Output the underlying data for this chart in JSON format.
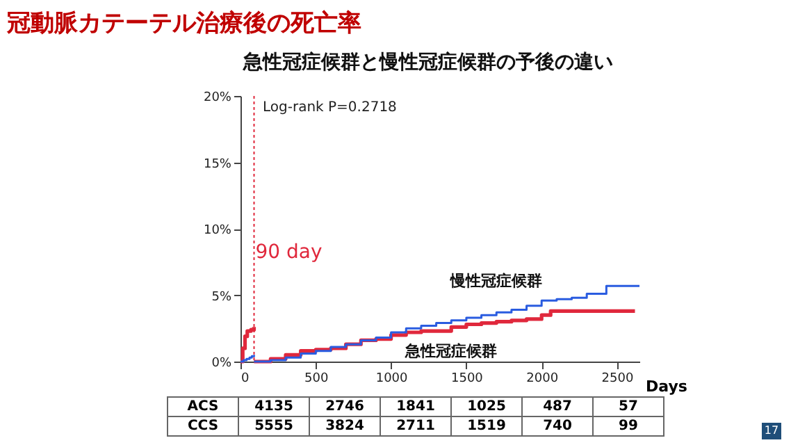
{
  "chart_data": {
    "type": "step",
    "title": "冠動脈カテーテル治療後の死亡率",
    "subtitle": "急性冠症候群と慢性冠症候群の予後の違い",
    "xlabel": "Days",
    "series": [
      {
        "name": "急性冠症候群",
        "color": "#e0283c",
        "x": [
          0,
          15,
          30,
          45,
          70,
          90,
          null,
          90,
          200,
          300,
          400,
          500,
          600,
          700,
          800,
          900,
          1000,
          1100,
          1200,
          1300,
          1400,
          1500,
          1600,
          1700,
          1800,
          1900,
          2000,
          2060,
          2620
        ],
        "values": [
          0,
          1.0,
          1.9,
          2.3,
          2.4,
          2.6,
          null,
          0,
          0.2,
          0.5,
          0.8,
          0.9,
          1.0,
          1.3,
          1.6,
          1.7,
          2.0,
          2.2,
          2.3,
          2.3,
          2.6,
          2.8,
          2.9,
          3.0,
          3.1,
          3.2,
          3.5,
          3.8,
          3.8
        ]
      },
      {
        "name": "慢性冠症候群",
        "color": "#2a5ce0",
        "x": [
          0,
          20,
          40,
          60,
          75,
          90,
          null,
          90,
          200,
          300,
          400,
          500,
          600,
          700,
          800,
          900,
          1000,
          1100,
          1200,
          1300,
          1400,
          1500,
          1600,
          1700,
          1800,
          1900,
          2000,
          2100,
          2200,
          2300,
          2430,
          2650
        ],
        "values": [
          0,
          0.1,
          0.2,
          0.3,
          0.4,
          0.5,
          null,
          0,
          0.1,
          0.3,
          0.6,
          0.8,
          1.1,
          1.3,
          1.6,
          1.8,
          2.2,
          2.5,
          2.7,
          2.9,
          3.1,
          3.3,
          3.5,
          3.7,
          3.9,
          4.2,
          4.6,
          4.7,
          4.8,
          5.1,
          5.7,
          5.7
        ]
      }
    ],
    "xlim": [
      0,
      2650
    ],
    "xticks": [
      0,
      500,
      1000,
      1500,
      2000,
      2500
    ],
    "ylim": [
      0,
      20
    ],
    "yticks": [
      {
        "value": 0,
        "label": "0%"
      },
      {
        "value": 5,
        "label": "5%"
      },
      {
        "value": 10,
        "label": "10%"
      },
      {
        "value": 15,
        "label": "15%"
      },
      {
        "value": 20,
        "label": "20%"
      }
    ],
    "ref_lines": [
      {
        "axis": "x",
        "value": 90,
        "label": "90 day",
        "color": "#e0283c",
        "line_style": "dotted"
      }
    ],
    "annotations": [
      "Log-rank P=0.2718",
      "ACS",
      "4135",
      "2746",
      "1841",
      "1025",
      "487",
      "57",
      "CCS",
      "5555",
      "3824",
      "2711",
      "1519",
      "740",
      "99",
      "17"
    ]
  }
}
